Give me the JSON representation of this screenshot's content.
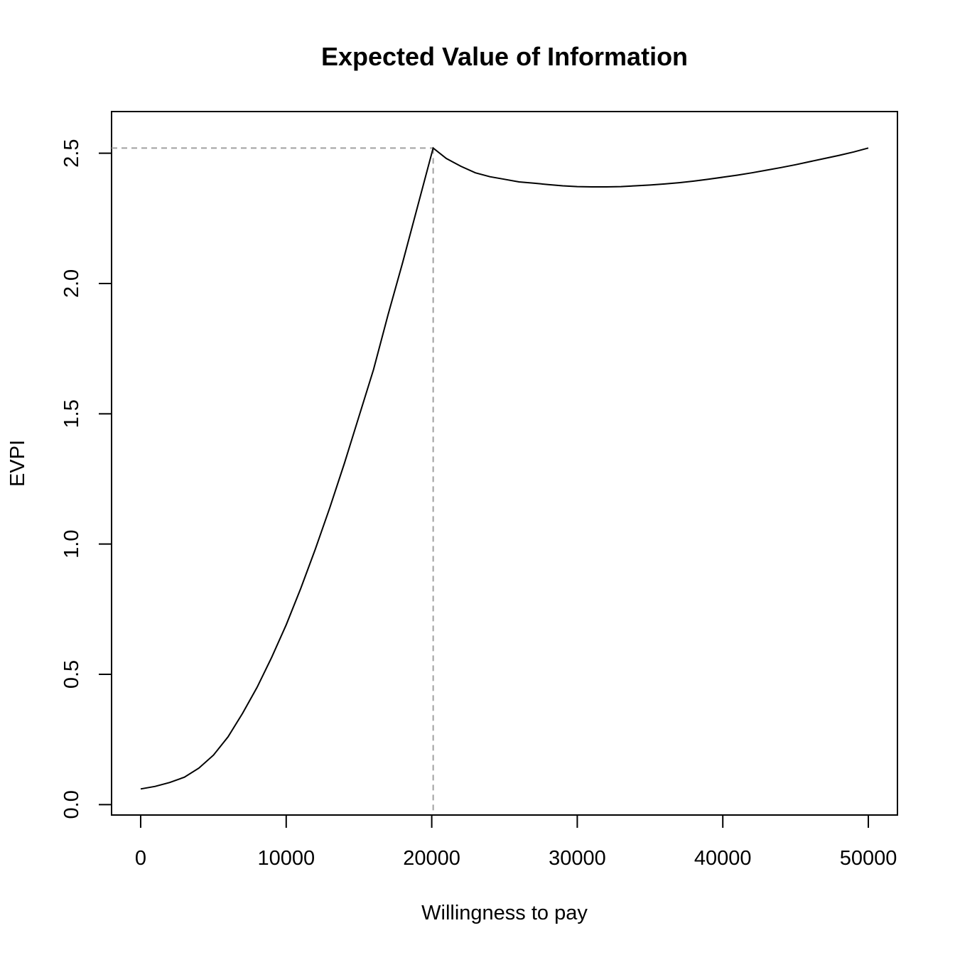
{
  "chart_data": {
    "type": "line",
    "title": "Expected Value of Information",
    "xlabel": "Willingness to pay",
    "ylabel": "EVPI",
    "xlim": [
      -2000,
      52000
    ],
    "ylim": [
      -0.04,
      2.66
    ],
    "x_ticks": [
      0,
      10000,
      20000,
      30000,
      40000,
      50000
    ],
    "x_tick_labels": [
      "0",
      "10000",
      "20000",
      "30000",
      "40000",
      "50000"
    ],
    "y_ticks": [
      0,
      0.5,
      1,
      1.5,
      2,
      2.5
    ],
    "y_tick_labels": [
      "0.0",
      "0.5",
      "1.0",
      "1.5",
      "2.0",
      "2.5"
    ],
    "grid": false,
    "legend": "none",
    "series": [
      {
        "color": "#000000",
        "x": [
          0,
          1000,
          2000,
          3000,
          4000,
          5000,
          6000,
          7000,
          8000,
          9000,
          10000,
          11000,
          12000,
          13000,
          14000,
          15000,
          16000,
          17000,
          18000,
          19000,
          20100,
          21000,
          22000,
          23000,
          24000,
          25000,
          26000,
          27000,
          28000,
          29000,
          30000,
          31000,
          32000,
          33000,
          34000,
          35000,
          36000,
          37000,
          38000,
          39000,
          40000,
          41000,
          42000,
          43000,
          44000,
          45000,
          46000,
          47000,
          48000,
          49000,
          50000
        ],
        "y": [
          0.06,
          0.07,
          0.085,
          0.105,
          0.14,
          0.19,
          0.26,
          0.35,
          0.45,
          0.565,
          0.69,
          0.83,
          0.98,
          1.14,
          1.31,
          1.49,
          1.67,
          1.88,
          2.08,
          2.29,
          2.52,
          2.48,
          2.45,
          2.425,
          2.41,
          2.4,
          2.39,
          2.385,
          2.38,
          2.375,
          2.372,
          2.371,
          2.371,
          2.372,
          2.375,
          2.378,
          2.382,
          2.387,
          2.393,
          2.4,
          2.408,
          2.416,
          2.425,
          2.435,
          2.445,
          2.456,
          2.468,
          2.48,
          2.492,
          2.505,
          2.52
        ]
      }
    ],
    "reference_point": {
      "x": 20100,
      "y": 2.52
    }
  }
}
